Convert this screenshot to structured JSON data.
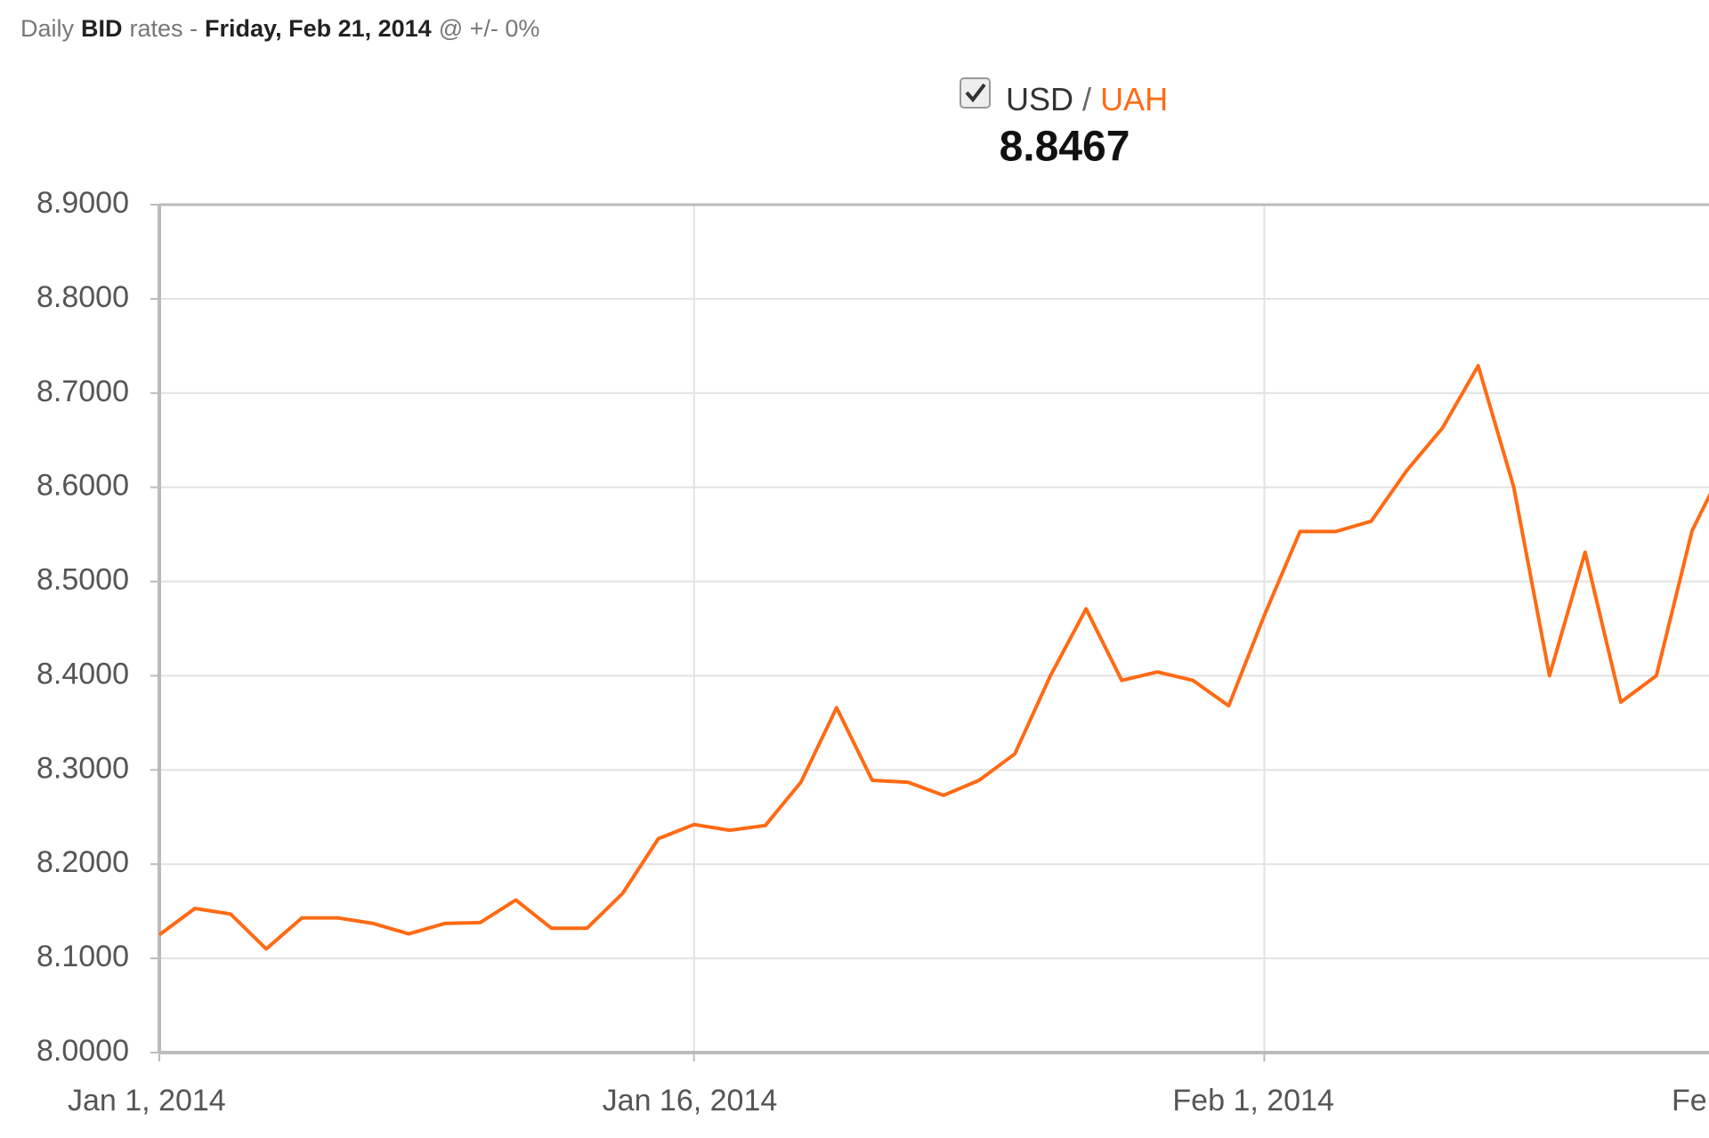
{
  "chart_data": {
    "type": "line",
    "title": [
      {
        "text": "Daily",
        "bold": false
      },
      {
        "text": "BID",
        "bold": true
      },
      {
        "text": "rates -",
        "bold": false
      },
      {
        "text": "Friday, Feb 21, 2014",
        "bold": true
      },
      {
        "text": "@ +/- 0%",
        "bold": false
      }
    ],
    "legend": {
      "base": "USD",
      "separator": "/",
      "quote": "UAH"
    },
    "last_value": 8.8467,
    "x": [
      "2014-01-01",
      "2014-01-02",
      "2014-01-03",
      "2014-01-04",
      "2014-01-05",
      "2014-01-06",
      "2014-01-07",
      "2014-01-08",
      "2014-01-09",
      "2014-01-10",
      "2014-01-11",
      "2014-01-12",
      "2014-01-13",
      "2014-01-14",
      "2014-01-15",
      "2014-01-16",
      "2014-01-17",
      "2014-01-18",
      "2014-01-19",
      "2014-01-20",
      "2014-01-21",
      "2014-01-22",
      "2014-01-23",
      "2014-01-24",
      "2014-01-25",
      "2014-01-26",
      "2014-01-27",
      "2014-01-28",
      "2014-01-29",
      "2014-01-30",
      "2014-01-31",
      "2014-02-01",
      "2014-02-02",
      "2014-02-03",
      "2014-02-04",
      "2014-02-05",
      "2014-02-06",
      "2014-02-07",
      "2014-02-08",
      "2014-02-09",
      "2014-02-10",
      "2014-02-11",
      "2014-02-12",
      "2014-02-13",
      "2014-02-14"
    ],
    "series": [
      {
        "name": "USD / UAH",
        "color": "#ff6a13",
        "values": [
          8.125,
          8.153,
          8.147,
          8.11,
          8.143,
          8.143,
          8.137,
          8.126,
          8.137,
          8.138,
          8.162,
          8.132,
          8.132,
          8.169,
          8.227,
          8.242,
          8.236,
          8.241,
          8.287,
          8.366,
          8.289,
          8.287,
          8.273,
          8.289,
          8.317,
          8.4,
          8.471,
          8.395,
          8.404,
          8.395,
          8.368,
          8.464,
          8.553,
          8.553,
          8.564,
          8.618,
          8.663,
          8.729,
          8.6,
          8.4,
          8.531,
          8.372,
          8.4,
          8.554,
          8.63
        ]
      }
    ],
    "xlim": [
      "2014-01-01",
      "2014-02-14"
    ],
    "xticks": [
      {
        "value": "2014-01-01",
        "label": "Jan 1, 2014"
      },
      {
        "value": "2014-01-16",
        "label": "Jan 16, 2014"
      },
      {
        "value": "2014-02-01",
        "label": "Feb 1, 2014"
      },
      {
        "value": "2014-02-15",
        "label": "Feb"
      }
    ],
    "ylim": [
      8.0,
      8.9
    ],
    "yticks": [
      {
        "value": 8.0,
        "label": "8.0000"
      },
      {
        "value": 8.1,
        "label": "8.1000"
      },
      {
        "value": 8.2,
        "label": "8.2000"
      },
      {
        "value": 8.3,
        "label": "8.3000"
      },
      {
        "value": 8.4,
        "label": "8.4000"
      },
      {
        "value": 8.5,
        "label": "8.5000"
      },
      {
        "value": 8.6,
        "label": "8.6000"
      },
      {
        "value": 8.7,
        "label": "8.7000"
      },
      {
        "value": 8.8,
        "label": "8.8000"
      },
      {
        "value": 8.9,
        "label": "8.9000"
      }
    ],
    "grid": true
  }
}
